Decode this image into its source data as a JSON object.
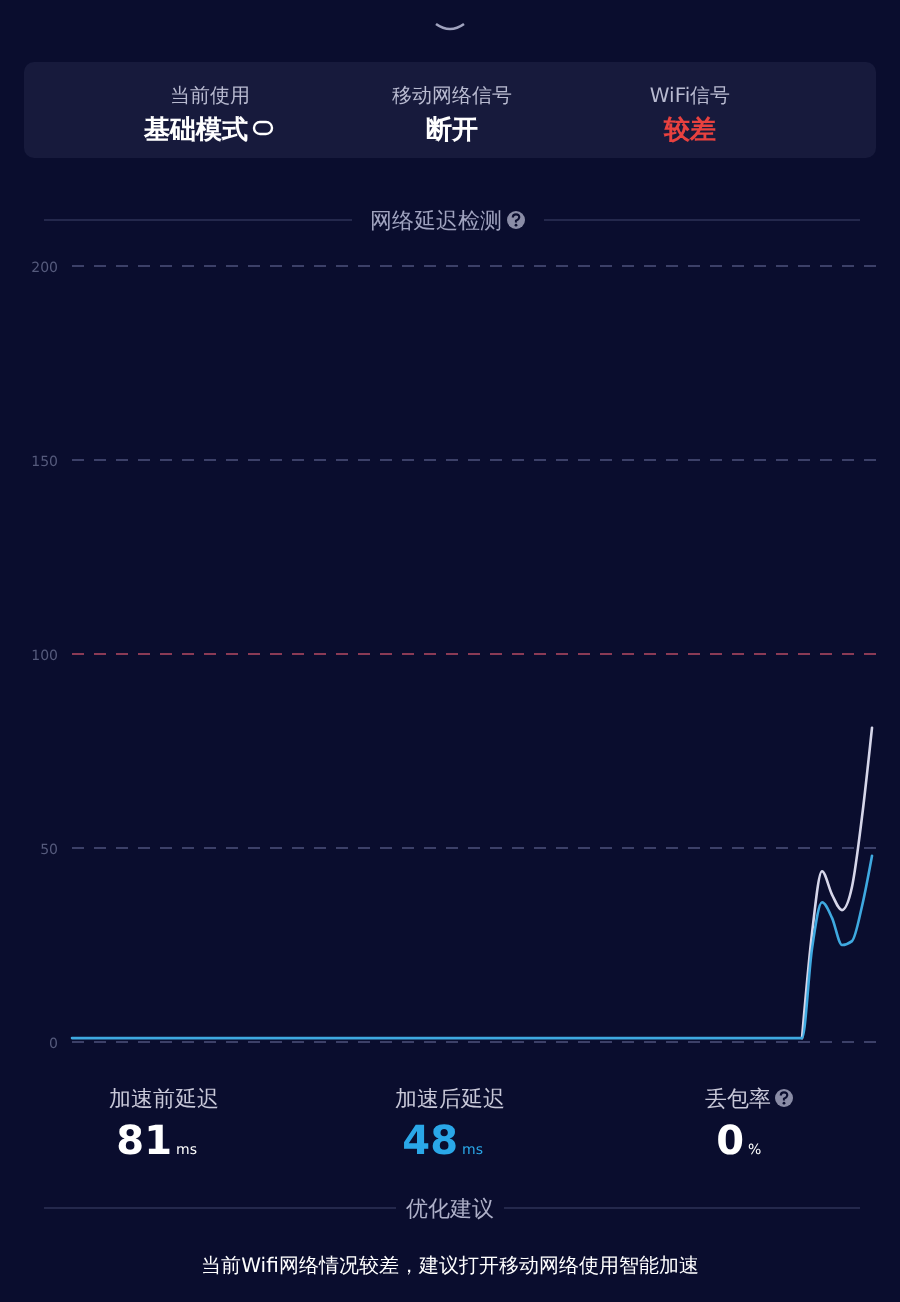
{
  "chart_data": {
    "type": "line",
    "title": "网络延迟检测",
    "categories": [
      null,
      null,
      null,
      null,
      null,
      null,
      null,
      null,
      null,
      null,
      null,
      null,
      null,
      null,
      null,
      null,
      null,
      null,
      null,
      null,
      null,
      null,
      null,
      null,
      null,
      null,
      null,
      null,
      null,
      null,
      null,
      null,
      null,
      null,
      null,
      null,
      null,
      null,
      null,
      null,
      null,
      null,
      null,
      null,
      null,
      null,
      null,
      null,
      null,
      null,
      null,
      null,
      null,
      null,
      null,
      null,
      null,
      null,
      null,
      null,
      null,
      null,
      null,
      null,
      null,
      null,
      null,
      null,
      null,
      null,
      null,
      null,
      null,
      null,
      null,
      null,
      null,
      null,
      null,
      null,
      null
    ],
    "series": [
      {
        "color": "#d6d6ea",
        "values": [
          null,
          null,
          null,
          null,
          null,
          null,
          null,
          null,
          null,
          null,
          null,
          null,
          null,
          null,
          null,
          null,
          null,
          null,
          null,
          null,
          null,
          null,
          null,
          null,
          null,
          null,
          null,
          null,
          null,
          null,
          null,
          null,
          null,
          null,
          null,
          null,
          null,
          null,
          null,
          null,
          null,
          null,
          null,
          null,
          null,
          null,
          null,
          null,
          null,
          null,
          null,
          null,
          null,
          null,
          null,
          null,
          null,
          null,
          null,
          null,
          null,
          null,
          null,
          null,
          null,
          null,
          null,
          null,
          null,
          null,
          null,
          null,
          null,
          1,
          28,
          44,
          38,
          34,
          40,
          58,
          81
        ]
      },
      {
        "color": "#3fa9e0",
        "values": [
          1,
          1,
          1,
          1,
          1,
          1,
          1,
          1,
          1,
          1,
          1,
          1,
          1,
          1,
          1,
          1,
          1,
          1,
          1,
          1,
          1,
          1,
          1,
          1,
          1,
          1,
          1,
          1,
          1,
          1,
          1,
          1,
          1,
          1,
          1,
          1,
          1,
          1,
          1,
          1,
          1,
          1,
          1,
          1,
          1,
          1,
          1,
          1,
          1,
          1,
          1,
          1,
          1,
          1,
          1,
          1,
          1,
          1,
          1,
          1,
          1,
          1,
          1,
          1,
          1,
          1,
          1,
          1,
          1,
          1,
          1,
          1,
          1,
          1,
          24,
          36,
          32,
          25,
          26,
          35,
          48
        ]
      }
    ],
    "ylim": [
      0,
      200
    ],
    "yticks": [
      0,
      50,
      100,
      150,
      200
    ],
    "grid": "y",
    "marker": "none",
    "line_style": "solid",
    "ref_lines": [
      {
        "axis": "y",
        "value": 100,
        "color": "#8a3a55",
        "line_style": "dashed"
      }
    ],
    "annotations": [
      "当前使用",
      "基础模式",
      "移动网络信号",
      "断开",
      "WiFi信号",
      "较差",
      "加速前延迟",
      "81",
      "ms",
      "加速后延迟",
      "48",
      "ms",
      "丢包率",
      "0",
      "%",
      "优化建议",
      "当前Wifi网络情况较差，建议打开移动网络使用智能加速"
    ]
  }
}
